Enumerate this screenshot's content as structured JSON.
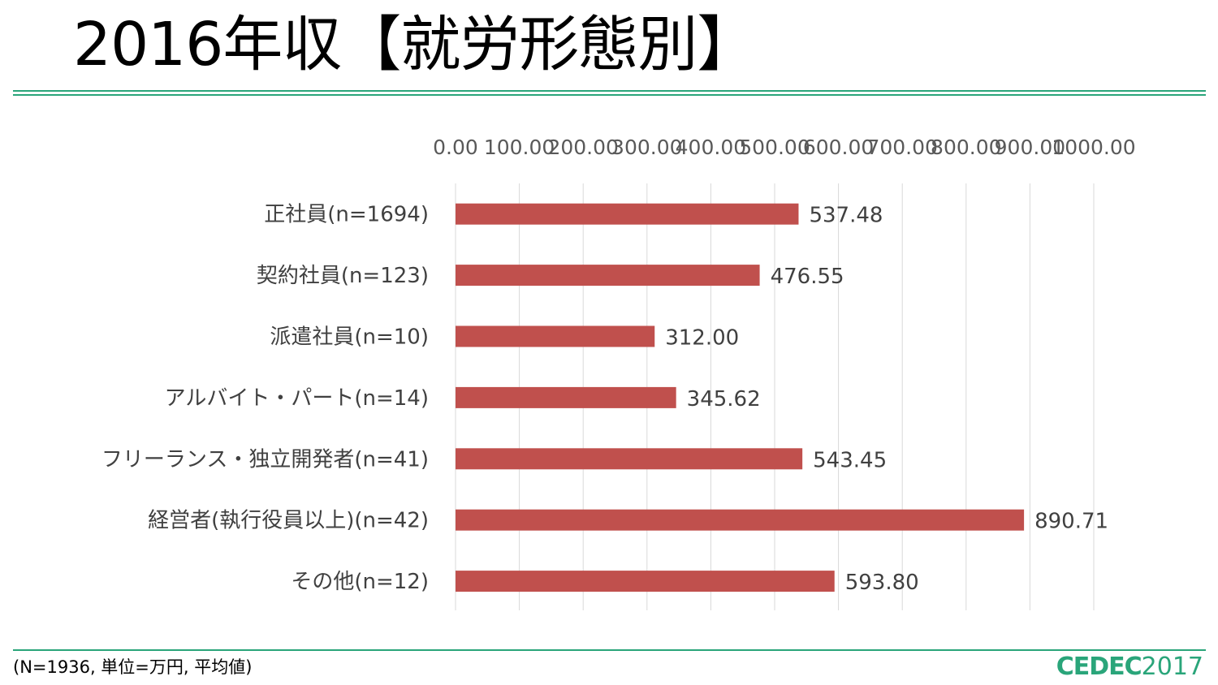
{
  "slide": {
    "title": "2016年収【就労形態別】",
    "footnote": "(N=1936, 単位=万円, 平均値)",
    "logo": {
      "brand": "CEDEC",
      "year": "2017"
    },
    "colors": {
      "rule": "#2aa57a",
      "bar": "#c0504d",
      "logo": "#2aa57a"
    }
  },
  "chart_data": {
    "type": "bar",
    "orientation": "horizontal",
    "categories": [
      "正社員(n=1694)",
      "契約社員(n=123)",
      "派遣社員(n=10)",
      "アルバイト・パート(n=14)",
      "フリーランス・独立開発者(n=41)",
      "経営者(執行役員以上)(n=42)",
      "その他(n=12)"
    ],
    "values": [
      537.48,
      476.55,
      312.0,
      345.62,
      543.45,
      890.71,
      593.8
    ],
    "value_labels": [
      "537.48",
      "476.55",
      "312.00",
      "345.62",
      "543.45",
      "890.71",
      "593.80"
    ],
    "xlim": [
      0,
      1000
    ],
    "x_ticks": [
      "0.00",
      "100.00",
      "200.00",
      "300.00",
      "400.00",
      "500.00",
      "600.00",
      "700.00",
      "800.00",
      "900.00",
      "1000.00"
    ],
    "x_axis_position": "top",
    "grid": true,
    "legend": "none"
  }
}
